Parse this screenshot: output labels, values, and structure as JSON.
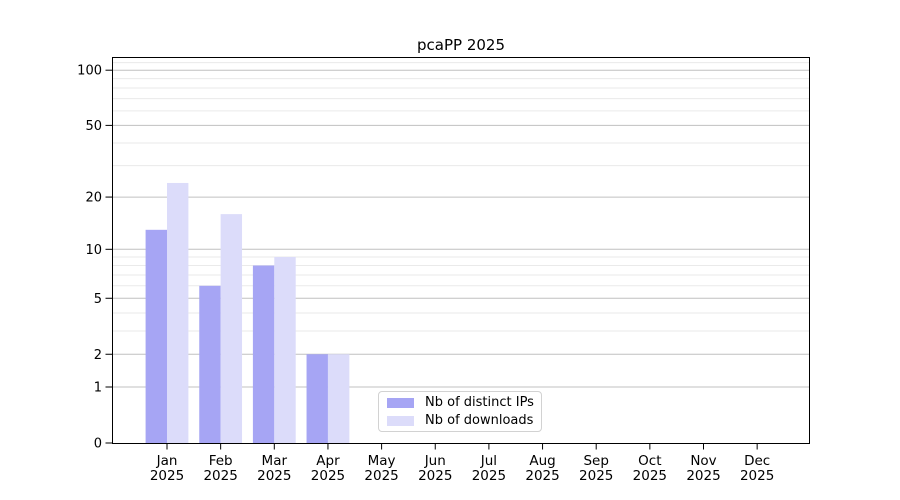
{
  "chart_data": {
    "type": "bar",
    "title": "pcaPP 2025",
    "categories": [
      "Jan",
      "Feb",
      "Mar",
      "Apr",
      "May",
      "Jun",
      "Jul",
      "Aug",
      "Sep",
      "Oct",
      "Nov",
      "Dec"
    ],
    "x_tick_second_line": "2025",
    "series": [
      {
        "name": "Nb of distinct IPs",
        "color": "#a6a5f4",
        "values": [
          13,
          6,
          8,
          2,
          0,
          0,
          0,
          0,
          0,
          0,
          0,
          0
        ]
      },
      {
        "name": "Nb of downloads",
        "color": "#dcdcfa",
        "values": [
          24,
          16,
          9,
          2,
          0,
          0,
          0,
          0,
          0,
          0,
          0,
          0
        ]
      }
    ],
    "y_axis": {
      "scale": "log10(value+1)",
      "tick_labels": [
        "0",
        "1",
        "2",
        "5",
        "10",
        "20",
        "50",
        "100"
      ],
      "ticks": [
        0,
        1,
        2,
        5,
        10,
        20,
        50,
        100
      ],
      "minor_ticks": [
        3,
        4,
        6,
        7,
        8,
        9,
        30,
        40,
        60,
        70,
        80,
        90,
        110
      ],
      "range_top_value": 118
    },
    "grid": {
      "major": true,
      "minor": true
    },
    "legend_position": "lower center",
    "colors": {
      "background": "#ffffff",
      "axis": "#000000",
      "major_grid": "#c0c0c0",
      "minor_grid": "#eaeaea",
      "text": "#000000"
    }
  }
}
